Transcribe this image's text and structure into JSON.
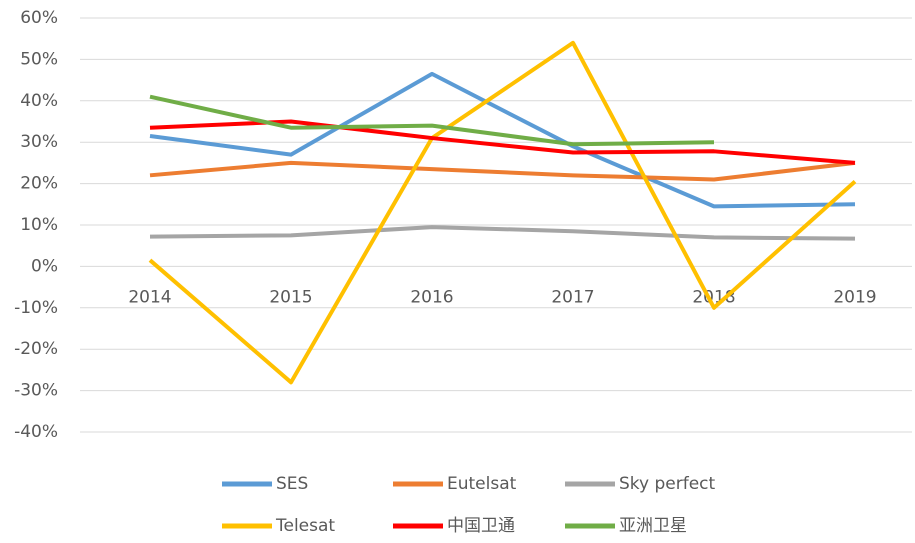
{
  "chart_data": {
    "type": "line",
    "categories": [
      "2014",
      "2015",
      "2016",
      "2017",
      "2018",
      "2019"
    ],
    "ylim": [
      -40,
      60
    ],
    "yticks": [
      {
        "value": -40,
        "label": "-40%"
      },
      {
        "value": -30,
        "label": "-30%"
      },
      {
        "value": -20,
        "label": "-20%"
      },
      {
        "value": -10,
        "label": "-10%"
      },
      {
        "value": 0,
        "label": "0%"
      },
      {
        "value": 10,
        "label": "10%"
      },
      {
        "value": 20,
        "label": "20%"
      },
      {
        "value": 30,
        "label": "30%"
      },
      {
        "value": 40,
        "label": "40%"
      },
      {
        "value": 50,
        "label": "50%"
      },
      {
        "value": 60,
        "label": "60%"
      }
    ],
    "grid": true,
    "legend": "bottom",
    "series": [
      {
        "name": "SES",
        "color": "#5b9bd5",
        "values": [
          31.5,
          27,
          46.5,
          29,
          14.5,
          15
        ]
      },
      {
        "name": "Eutelsat",
        "color": "#ed7d31",
        "values": [
          22,
          25,
          23.5,
          22,
          21,
          25
        ]
      },
      {
        "name": "Sky perfect",
        "color": "#a5a5a5",
        "values": [
          7.2,
          7.5,
          9.5,
          8.5,
          7,
          6.7
        ]
      },
      {
        "name": "Telesat",
        "color": "#ffc000",
        "values": [
          1.5,
          -28,
          31,
          54,
          -10,
          20.5
        ]
      },
      {
        "name": "中国卫通",
        "color": "#ff0000",
        "values": [
          33.5,
          35,
          31,
          27.5,
          27.8,
          25
        ]
      },
      {
        "name": "亚洲卫星",
        "color": "#70ad47",
        "values": [
          41,
          33.5,
          34,
          29.5,
          30,
          null
        ]
      }
    ]
  }
}
